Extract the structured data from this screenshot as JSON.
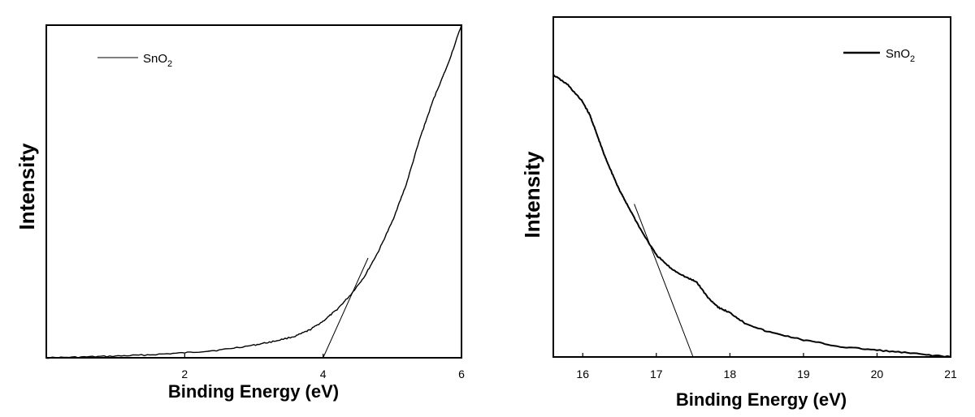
{
  "chart_data": [
    {
      "type": "line",
      "xlabel": "Binding Energy (eV)",
      "ylabel": "Intensity",
      "xlim": [
        0,
        6
      ],
      "xticks": [
        2,
        4,
        6
      ],
      "ylim": [
        0,
        1
      ],
      "y_ticks_shown": false,
      "grid": false,
      "legend": {
        "position": "top-left",
        "entries": [
          {
            "label": "SnO",
            "sub": "2"
          }
        ]
      },
      "series": [
        {
          "name": "SnO2",
          "x": [
            0.0,
            0.5,
            1.0,
            1.5,
            2.0,
            2.5,
            3.0,
            3.3,
            3.6,
            3.8,
            4.0,
            4.2,
            4.4,
            4.6,
            4.8,
            5.0,
            5.2,
            5.4,
            5.6,
            5.8,
            6.0
          ],
          "y": [
            0.0,
            0.002,
            0.005,
            0.009,
            0.015,
            0.023,
            0.038,
            0.05,
            0.065,
            0.083,
            0.11,
            0.145,
            0.19,
            0.245,
            0.32,
            0.41,
            0.52,
            0.66,
            0.78,
            0.88,
            1.0
          ]
        }
      ],
      "tangent": {
        "x": [
          4.0,
          4.65
        ],
        "y": [
          0.0,
          0.3
        ]
      }
    },
    {
      "type": "line",
      "xlabel": "Binding Energy (eV)",
      "ylabel": "Intensity",
      "xlim": [
        15.6,
        21
      ],
      "xticks": [
        16,
        17,
        18,
        19,
        20,
        21
      ],
      "ylim": [
        0,
        1
      ],
      "y_ticks_shown": false,
      "grid": false,
      "legend": {
        "position": "top-right",
        "entries": [
          {
            "label": "SnO",
            "sub": "2"
          }
        ]
      },
      "series": [
        {
          "name": "SnO2",
          "x": [
            15.6,
            15.8,
            16.0,
            16.1,
            16.2,
            16.3,
            16.4,
            16.5,
            16.6,
            16.8,
            17.0,
            17.2,
            17.4,
            17.55,
            17.7,
            17.85,
            18.0,
            18.2,
            18.5,
            19.0,
            19.5,
            20.0,
            20.5,
            21.0
          ],
          "y": [
            0.83,
            0.8,
            0.75,
            0.71,
            0.65,
            0.59,
            0.54,
            0.49,
            0.45,
            0.37,
            0.3,
            0.26,
            0.235,
            0.22,
            0.175,
            0.145,
            0.13,
            0.1,
            0.075,
            0.05,
            0.03,
            0.02,
            0.01,
            0.0
          ]
        }
      ],
      "tangent": {
        "x": [
          16.7,
          17.5
        ],
        "y": [
          0.45,
          0.0
        ]
      }
    }
  ]
}
